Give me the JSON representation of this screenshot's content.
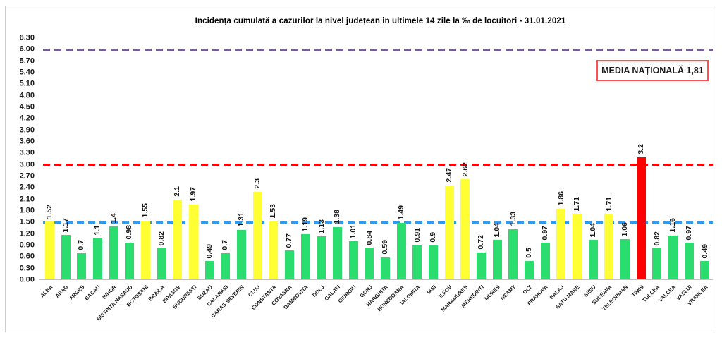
{
  "title": "Incidența cumulată a cazurilor la nivel județean în ultimele 14 zile   la ‰ de locuitori  - 31.01.2021",
  "national_average": {
    "label": "MEDIA NAȚIONALĂ 1,81",
    "value": 1.81
  },
  "colors": {
    "bar_green": "#2bdd6e",
    "bar_yellow": "#ffff33",
    "bar_red": "#ff0000",
    "ref_blue": "#2e9bf0",
    "ref_red": "#ff0000",
    "ref_purple": "#7d55a8",
    "badge_border": "#ff5050",
    "baseline": "#c0c0c0",
    "panel_border": "#cdcdcd"
  },
  "chart_data": {
    "type": "bar",
    "title": "Incidența cumulată a cazurilor la nivel județean în ultimele 14 zile   la ‰ de locuitori  - 31.01.2021",
    "xlabel": "",
    "ylabel": "",
    "ylim": [
      0,
      6.3
    ],
    "ytick_step": 0.3,
    "grid": false,
    "legend_position": "none",
    "value_label_rotation": 90,
    "category_label_rotation": 45,
    "reference_lines": [
      {
        "value": 6.0,
        "style": "dashed",
        "color_key": "ref_purple"
      },
      {
        "value": 3.0,
        "style": "dashed",
        "color_key": "ref_red"
      },
      {
        "value": 1.5,
        "style": "dashed",
        "color_key": "ref_blue"
      }
    ],
    "categories": [
      "ALBA",
      "ARAD",
      "ARGES",
      "BACAU",
      "BIHOR",
      "BISTRITA NASAUD",
      "BOTOSANI",
      "BRAILA",
      "BRASOV",
      "BUCURESTI",
      "BUZAU",
      "CALARASI",
      "CARAS-SEVERIN",
      "CLUJ",
      "CONSTANTA",
      "COVASNA",
      "DAMBOVITA",
      "DOLJ",
      "GALATI",
      "GIURGIU",
      "GORJ",
      "HARGHITA",
      "HUNEDOARA",
      "IALOMITA",
      "IASI",
      "ILFOV",
      "MARAMURES",
      "MEHEDINTI",
      "MURES",
      "NEAMT",
      "OLT",
      "PRAHOVA",
      "SALAJ",
      "SATU MARE",
      "SIBIU",
      "SUCEAVA",
      "TELEORMAN",
      "TIMIS",
      "TULCEA",
      "VALCEA",
      "VASLUI",
      "VRANCEA"
    ],
    "values": [
      1.52,
      1.17,
      0.7,
      1.1,
      1.4,
      0.98,
      1.55,
      0.82,
      2.1,
      1.97,
      0.49,
      0.7,
      1.31,
      2.3,
      1.53,
      0.77,
      1.19,
      1.13,
      1.38,
      1.01,
      0.84,
      0.59,
      1.49,
      0.91,
      0.9,
      2.47,
      2.62,
      0.72,
      1.04,
      1.33,
      0.5,
      0.97,
      1.86,
      1.71,
      1.04,
      1.71,
      1.06,
      3.2,
      0.82,
      1.16,
      0.97,
      0.49
    ],
    "value_labels": [
      "1.52",
      "1.17",
      "0.7",
      "1.1",
      "1.4",
      "0.98",
      "1.55",
      "0.82",
      "2.1",
      "1.97",
      "0.49",
      "0.7",
      "1.31",
      "2.3",
      "1.53",
      "0.77",
      "1.19",
      "1.13",
      "1.38",
      "1.01",
      "0.84",
      "0.59",
      "1.49",
      "0.91",
      "0.9",
      "2.47",
      "2.62",
      "0.72",
      "1.04",
      "1.33",
      "0.5",
      "0.97",
      "1.86",
      "1.71",
      "1.04",
      "1.71",
      "1.06",
      "3.2",
      "0.82",
      "1.16",
      "0.97",
      "0.49"
    ],
    "bar_color_keys": [
      "yellow",
      "green",
      "green",
      "green",
      "green",
      "green",
      "yellow",
      "green",
      "yellow",
      "yellow",
      "green",
      "green",
      "green",
      "yellow",
      "yellow",
      "green",
      "green",
      "green",
      "green",
      "green",
      "green",
      "green",
      "green",
      "green",
      "green",
      "yellow",
      "yellow",
      "green",
      "green",
      "green",
      "green",
      "green",
      "yellow",
      "yellow",
      "green",
      "yellow",
      "green",
      "red",
      "green",
      "green",
      "green",
      "green"
    ]
  }
}
